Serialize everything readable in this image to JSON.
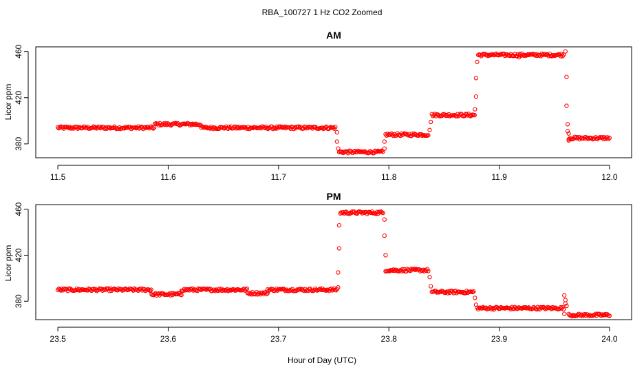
{
  "figure": {
    "title": "RBA_100727  1 Hz CO2 Zoomed",
    "xlabel": "Hour of Day (UTC)"
  },
  "colors": {
    "points": "#ff0000",
    "axes": "#000000"
  },
  "chart_data": [
    {
      "type": "scatter",
      "title": "AM",
      "xlabel": "Hour of Day (UTC)",
      "ylabel": "Licor ppm",
      "xlim": [
        11.48,
        12.02
      ],
      "ylim": [
        368,
        464
      ],
      "xticks": [
        11.5,
        11.6,
        11.7,
        11.8,
        11.9,
        12.0
      ],
      "xtick_labels": [
        "11.5",
        "11.6",
        "11.7",
        "11.8",
        "11.9",
        "12.0"
      ],
      "yticks": [
        380,
        420,
        460
      ],
      "ytick_labels": [
        "380",
        "420",
        "460"
      ],
      "grid": false,
      "marker": "open-circle",
      "segments": [
        {
          "x0": 11.5,
          "x1": 11.588,
          "y": 394
        },
        {
          "x0": 11.588,
          "x1": 11.63,
          "y": 397
        },
        {
          "x0": 11.63,
          "x1": 11.752,
          "y": 394
        },
        {
          "x0": 11.755,
          "x1": 11.795,
          "y": 373
        },
        {
          "x0": 11.797,
          "x1": 11.836,
          "y": 388
        },
        {
          "x0": 11.839,
          "x1": 11.878,
          "y": 405
        },
        {
          "x0": 11.881,
          "x1": 11.959,
          "y": 457
        },
        {
          "x0": 11.963,
          "x1": 12.0,
          "y": 385
        }
      ],
      "transitions": [
        {
          "x": 11.753,
          "y": 390
        },
        {
          "x": 11.753,
          "y": 382
        },
        {
          "x": 11.754,
          "y": 376
        },
        {
          "x": 11.796,
          "y": 376
        },
        {
          "x": 11.796,
          "y": 382
        },
        {
          "x": 11.837,
          "y": 392
        },
        {
          "x": 11.838,
          "y": 399
        },
        {
          "x": 11.878,
          "y": 410
        },
        {
          "x": 11.879,
          "y": 421
        },
        {
          "x": 11.879,
          "y": 437
        },
        {
          "x": 11.88,
          "y": 451
        },
        {
          "x": 11.918,
          "y": 455
        },
        {
          "x": 11.96,
          "y": 460
        },
        {
          "x": 11.961,
          "y": 438
        },
        {
          "x": 11.961,
          "y": 413
        },
        {
          "x": 11.962,
          "y": 397
        },
        {
          "x": 11.962,
          "y": 391
        },
        {
          "x": 11.963,
          "y": 389
        },
        {
          "x": 11.963,
          "y": 383
        }
      ]
    },
    {
      "type": "scatter",
      "title": "PM",
      "xlabel": "Hour of Day (UTC)",
      "ylabel": "Licor ppm",
      "xlim": [
        23.48,
        24.02
      ],
      "ylim": [
        364,
        464
      ],
      "xticks": [
        23.5,
        23.6,
        23.7,
        23.8,
        23.9,
        24.0
      ],
      "xtick_labels": [
        "23.5",
        "23.6",
        "23.7",
        "23.8",
        "23.9",
        "24.0"
      ],
      "yticks": [
        380,
        420,
        460
      ],
      "ytick_labels": [
        "380",
        "420",
        "460"
      ],
      "grid": false,
      "marker": "open-circle",
      "segments": [
        {
          "x0": 23.5,
          "x1": 23.585,
          "y": 390
        },
        {
          "x0": 23.585,
          "x1": 23.612,
          "y": 386
        },
        {
          "x0": 23.612,
          "x1": 23.672,
          "y": 390
        },
        {
          "x0": 23.672,
          "x1": 23.69,
          "y": 387
        },
        {
          "x0": 23.69,
          "x1": 23.753,
          "y": 390
        },
        {
          "x0": 23.756,
          "x1": 23.795,
          "y": 457
        },
        {
          "x0": 23.797,
          "x1": 23.836,
          "y": 407
        },
        {
          "x0": 23.839,
          "x1": 23.877,
          "y": 388
        },
        {
          "x0": 23.88,
          "x1": 23.959,
          "y": 374
        },
        {
          "x0": 23.963,
          "x1": 24.0,
          "y": 368
        }
      ],
      "transitions": [
        {
          "x": 23.754,
          "y": 392
        },
        {
          "x": 23.754,
          "y": 405
        },
        {
          "x": 23.755,
          "y": 426
        },
        {
          "x": 23.755,
          "y": 446
        },
        {
          "x": 23.796,
          "y": 451
        },
        {
          "x": 23.796,
          "y": 437
        },
        {
          "x": 23.797,
          "y": 420
        },
        {
          "x": 23.837,
          "y": 401
        },
        {
          "x": 23.838,
          "y": 393
        },
        {
          "x": 23.878,
          "y": 383
        },
        {
          "x": 23.879,
          "y": 377
        },
        {
          "x": 23.959,
          "y": 385
        },
        {
          "x": 23.96,
          "y": 381
        },
        {
          "x": 23.96,
          "y": 378
        },
        {
          "x": 23.959,
          "y": 369
        },
        {
          "x": 23.961,
          "y": 376
        }
      ]
    }
  ]
}
